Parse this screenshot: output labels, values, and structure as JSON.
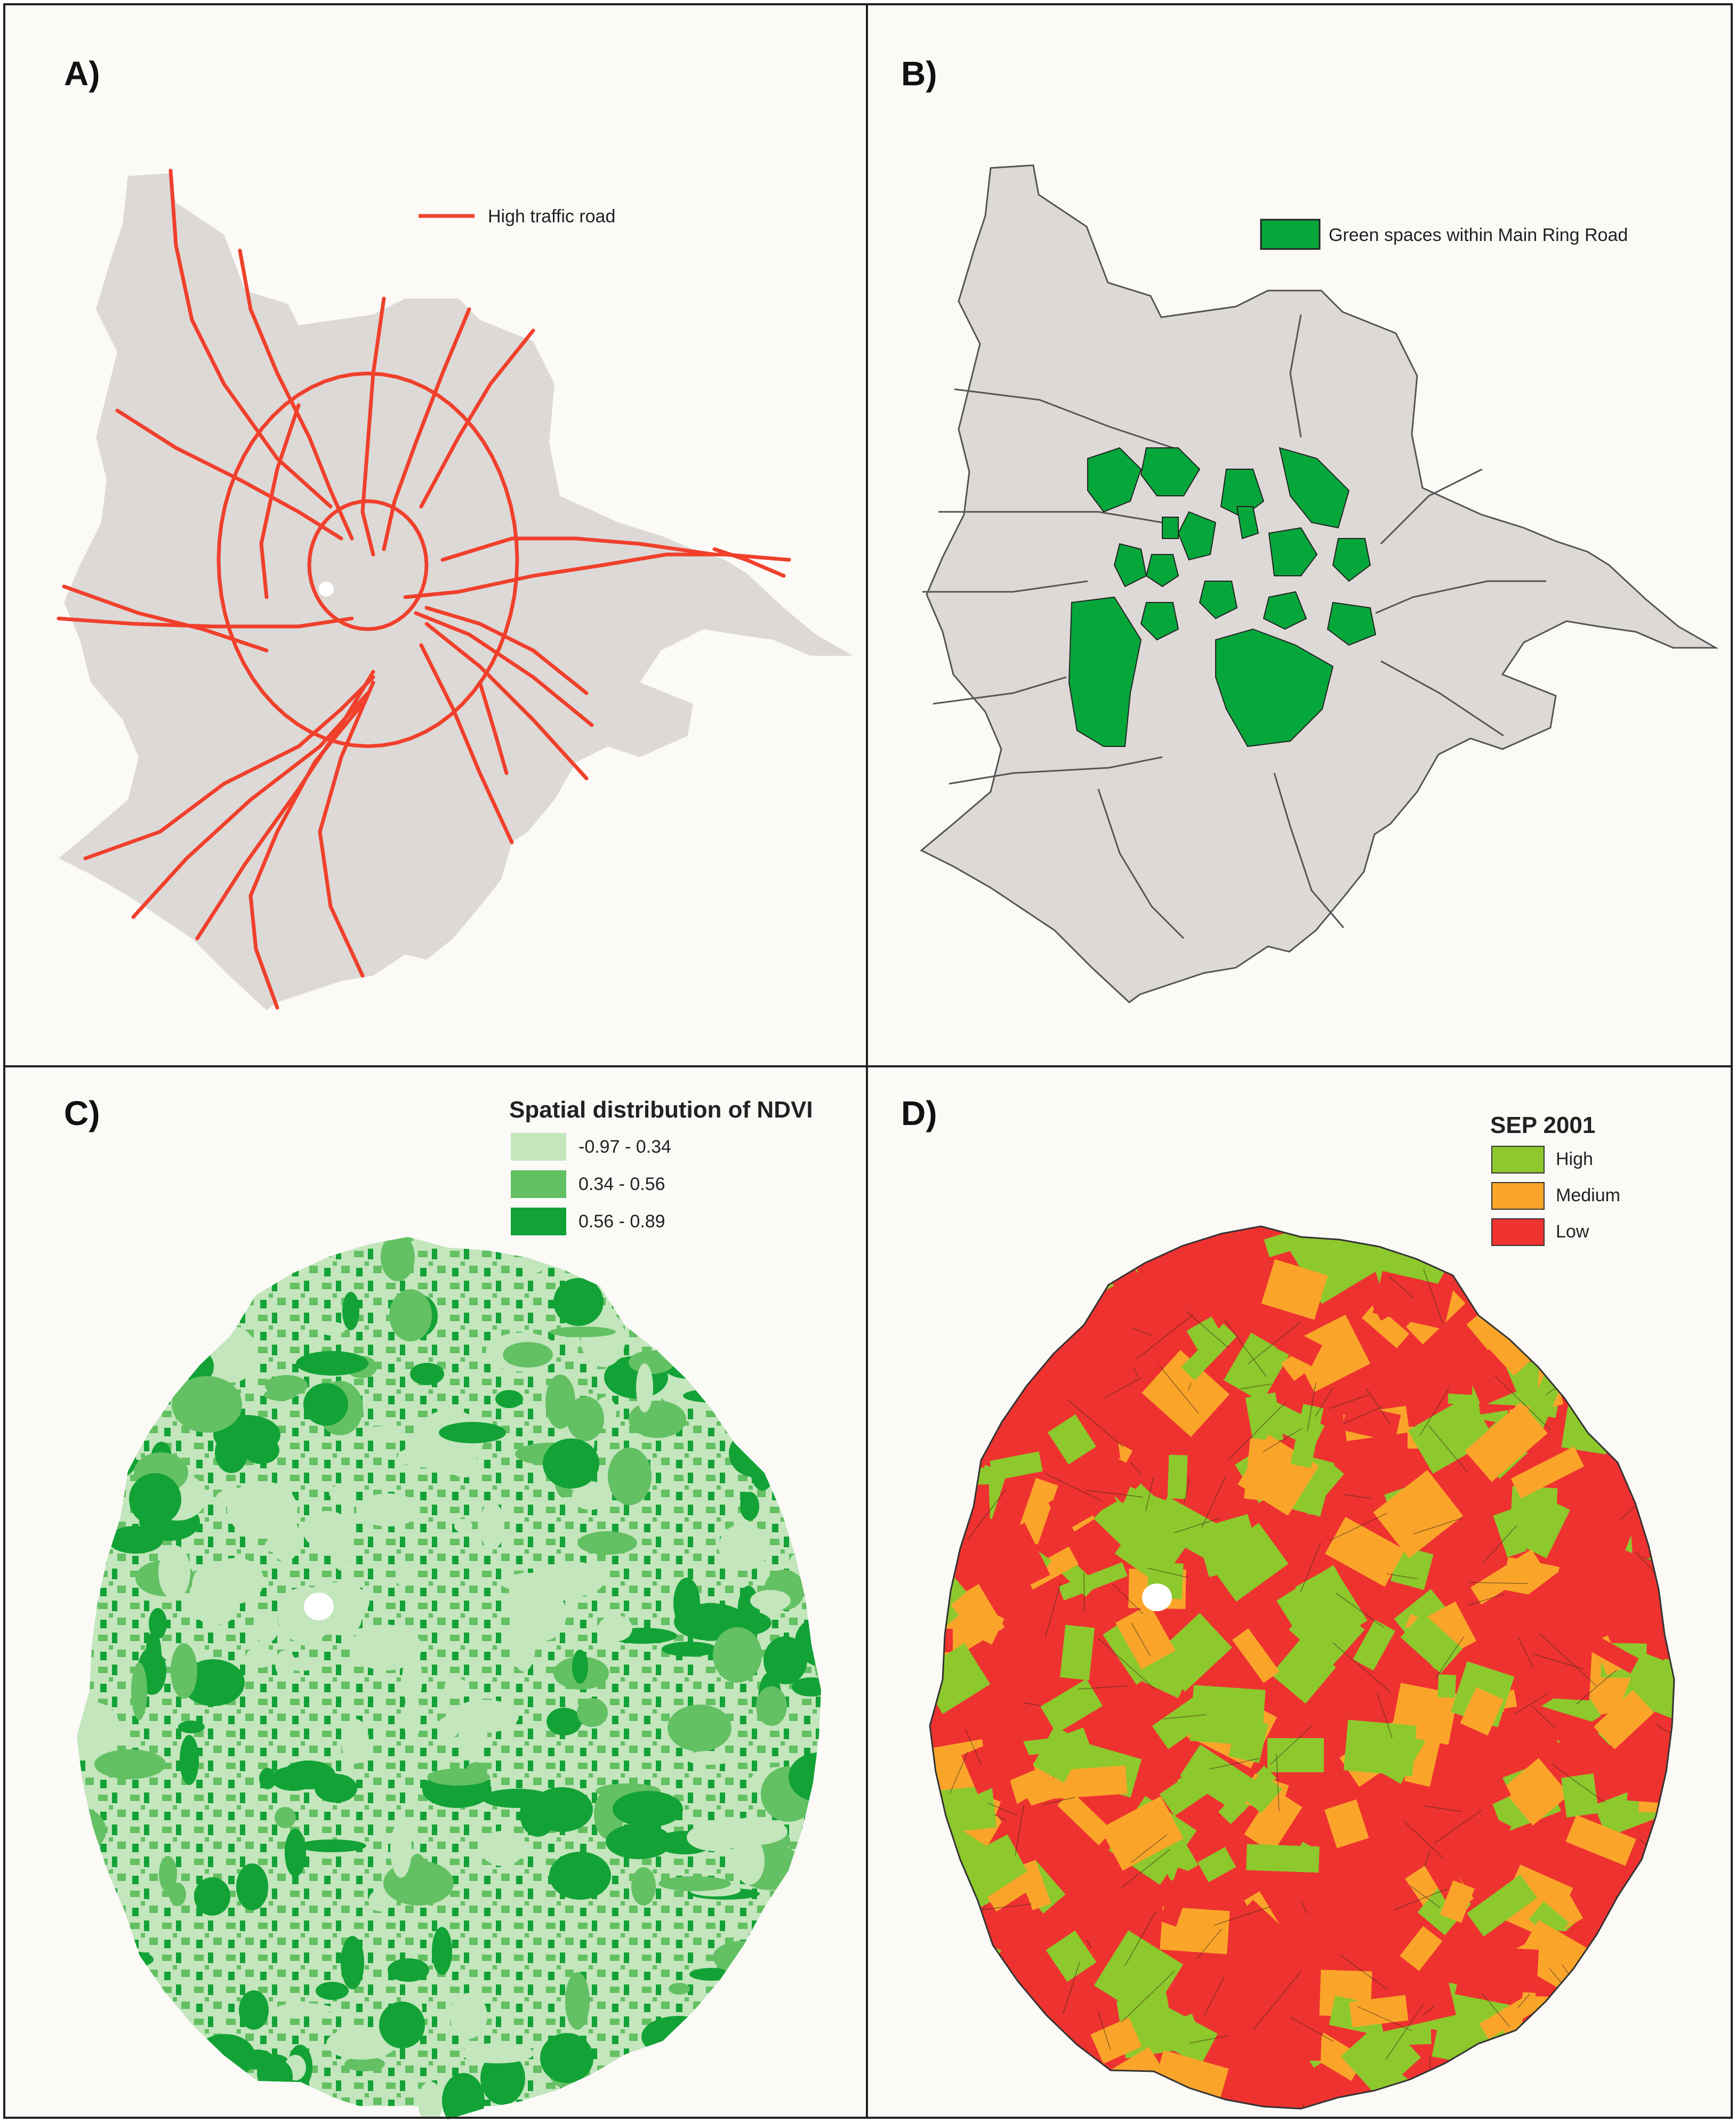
{
  "panels": {
    "a": {
      "letter": "A)",
      "legend": {
        "items": [
          {
            "label": "High traffic road",
            "color": "#f0402c",
            "symbol": "line"
          }
        ]
      }
    },
    "b": {
      "letter": "B)",
      "legend": {
        "items": [
          {
            "label": "Green spaces within Main Ring Road",
            "color": "#06a73a",
            "symbol": "box"
          }
        ]
      }
    },
    "c": {
      "letter": "C)",
      "legend": {
        "title": "Spatial distribution of NDVI",
        "items": [
          {
            "label": "-0.97 - 0.34",
            "color": "#c3e6bd"
          },
          {
            "label": "0.34 - 0.56",
            "color": "#63c063"
          },
          {
            "label": "0.56 - 0.89",
            "color": "#13a236"
          }
        ]
      }
    },
    "d": {
      "letter": "D)",
      "legend": {
        "title": "SEP 2001",
        "items": [
          {
            "label": "High",
            "color": "#8dc82d"
          },
          {
            "label": "Medium",
            "color": "#faa52a"
          },
          {
            "label": "Low",
            "color": "#ee3230"
          }
        ]
      }
    }
  },
  "colors": {
    "city": "#dcd9d7",
    "background": "#fbfaf7",
    "frame": "#222222",
    "boundary": "#555555",
    "road": "#f0402c",
    "green": "#06a73a"
  }
}
